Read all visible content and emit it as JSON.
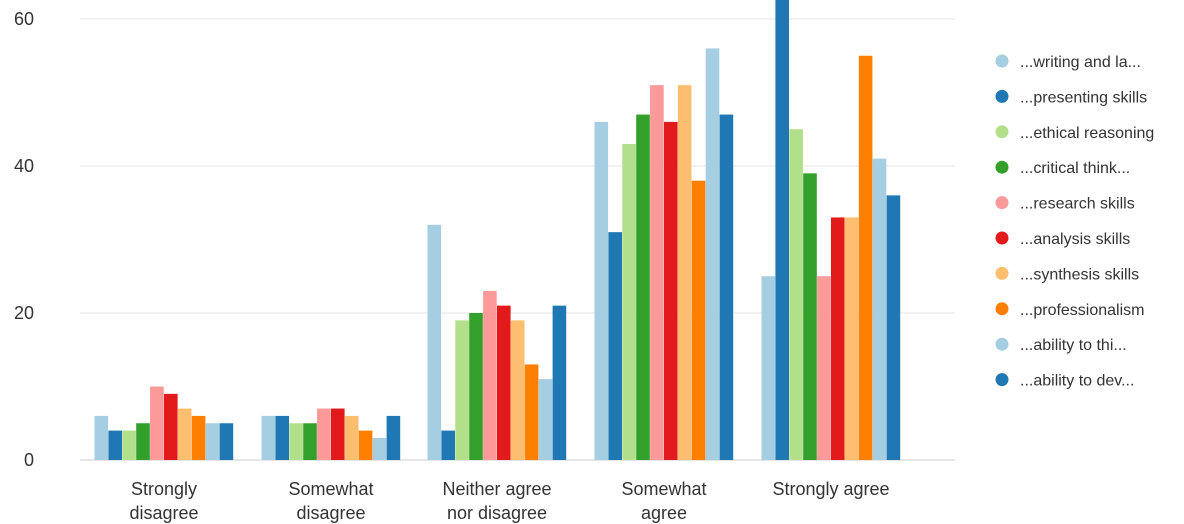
{
  "chart_data": {
    "type": "bar",
    "categories": [
      "Strongly disagree",
      "Somewhat disagree",
      "Neither agree nor disagree",
      "Somewhat agree",
      "Strongly agree"
    ],
    "ylim": [
      0,
      60
    ],
    "yticks": [
      0,
      20,
      40,
      60
    ],
    "grid": true,
    "legend_position": "right",
    "series": [
      {
        "name": "...writing and la...",
        "color": "#a6cee3",
        "values": [
          6,
          6,
          32,
          46,
          25
        ]
      },
      {
        "name": "...presenting skills",
        "color": "#1f78b4",
        "values": [
          4,
          6,
          4,
          31,
          63
        ]
      },
      {
        "name": "...ethical reasoning",
        "color": "#b2df8a",
        "values": [
          4,
          5,
          19,
          43,
          45
        ]
      },
      {
        "name": "...critical think...",
        "color": "#33a02c",
        "values": [
          5,
          5,
          20,
          47,
          39
        ]
      },
      {
        "name": "...research skills",
        "color": "#fb9a99",
        "values": [
          10,
          7,
          23,
          51,
          25
        ]
      },
      {
        "name": "...analysis skills",
        "color": "#e31a1c",
        "values": [
          9,
          7,
          21,
          46,
          33
        ]
      },
      {
        "name": "...synthesis skills",
        "color": "#fdbf6f",
        "values": [
          7,
          6,
          19,
          51,
          33
        ]
      },
      {
        "name": "...professionalism",
        "color": "#ff7f00",
        "values": [
          6,
          4,
          13,
          38,
          55
        ]
      },
      {
        "name": "...ability to thi...",
        "color": "#a6cee3",
        "values": [
          5,
          3,
          11,
          56,
          41
        ]
      },
      {
        "name": "...ability to dev...",
        "color": "#1f78b4",
        "values": [
          5,
          6,
          21,
          47,
          36
        ]
      }
    ]
  }
}
